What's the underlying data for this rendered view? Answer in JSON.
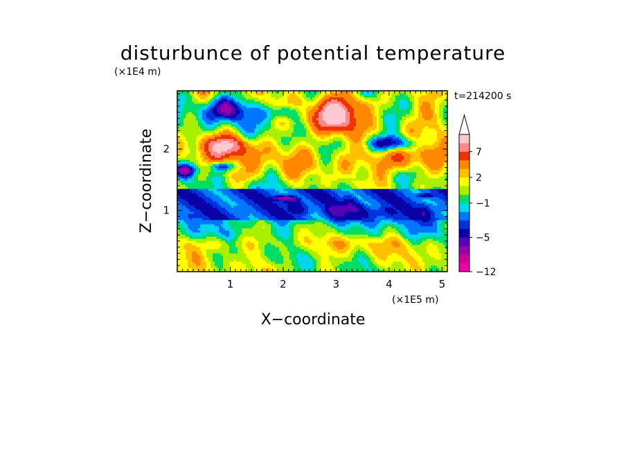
{
  "chart_data": {
    "type": "heatmap",
    "title": "disturbunce of potential temperature",
    "xlabel": "X−coordinate",
    "ylabel": "Z−coordinate",
    "x_unit": "(×1E5 m)",
    "y_unit": "(×1E4 m)",
    "time_label": "t=214200 s",
    "x_ticks": [
      "1",
      "2",
      "3",
      "4",
      "5"
    ],
    "x_tick_values": [
      1,
      2,
      3,
      4,
      5
    ],
    "y_ticks": [
      "1",
      "2"
    ],
    "y_tick_values": [
      1,
      2
    ],
    "xlim": [
      0,
      5.1
    ],
    "ylim": [
      0,
      2.95
    ],
    "colorbar": {
      "bounds": [
        -12,
        -10,
        -8,
        -6,
        -5,
        -4,
        -3,
        -2,
        -1,
        0,
        1,
        2,
        3,
        5,
        7,
        9,
        11
      ],
      "labels": [
        "7",
        "2",
        "−1",
        "−5",
        "−12"
      ],
      "label_values": [
        7,
        2,
        -1,
        -5,
        -12
      ],
      "colors": [
        "#ee00aa",
        "#cc0099",
        "#9a00a6",
        "#5a00b8",
        "#0a00a6",
        "#0033dd",
        "#0077ff",
        "#00d7ee",
        "#00dd66",
        "#aaee00",
        "#ffff00",
        "#ffc000",
        "#ff8800",
        "#ee3300",
        "#ff8888",
        "#ffc8d0"
      ],
      "extend": "max",
      "position": "right"
    },
    "field_layers": [
      {
        "z": 0.18,
        "amp": -0.3,
        "base": 0.6
      },
      {
        "z": 0.45,
        "amp": 1.6,
        "base": 1.1
      },
      {
        "z": 0.68,
        "amp": -0.4,
        "base": -0.6
      },
      {
        "z": 1.0,
        "amp": -4.2,
        "base": -3.6
      },
      {
        "z": 1.45,
        "amp": -0.2,
        "base": 0.3
      },
      {
        "z": 1.85,
        "amp": 2.6,
        "base": 2.2
      },
      {
        "z": 2.3,
        "amp": -1.3,
        "base": 0.3
      },
      {
        "z": 2.75,
        "amp": 1.2,
        "base": 0.6
      }
    ],
    "features": [
      {
        "x": 2.95,
        "z": 2.55,
        "value": 10.5,
        "rx": 0.45,
        "rz": 0.3
      },
      {
        "x": 0.95,
        "z": 2.05,
        "value": 8.5,
        "rx": 0.45,
        "rz": 0.18
      },
      {
        "x": 1.25,
        "z": 1.6,
        "value": 2.5,
        "rx": 0.35,
        "rz": 0.15
      },
      {
        "x": 0.95,
        "z": 2.65,
        "value": -5.5,
        "rx": 0.5,
        "rz": 0.2
      },
      {
        "x": 0.85,
        "z": 1.72,
        "value": -4.5,
        "rx": 0.2,
        "rz": 0.08
      },
      {
        "x": 2.0,
        "z": 2.6,
        "value": -3.5,
        "rx": 0.3,
        "rz": 0.12
      },
      {
        "x": 4.05,
        "z": 2.1,
        "value": -5.0,
        "rx": 0.45,
        "rz": 0.12
      },
      {
        "x": 4.2,
        "z": 1.85,
        "value": 6.0,
        "rx": 0.45,
        "rz": 0.18
      },
      {
        "x": 4.9,
        "z": 2.55,
        "value": 3.5,
        "rx": 0.3,
        "rz": 0.35
      },
      {
        "x": 3.6,
        "z": 2.75,
        "value": 3.0,
        "rx": 0.3,
        "rz": 0.15
      },
      {
        "x": 0.15,
        "z": 1.65,
        "value": -5.0,
        "rx": 0.2,
        "rz": 0.1
      },
      {
        "x": 2.0,
        "z": 1.2,
        "value": -6.0,
        "rx": 0.25,
        "rz": 0.05
      },
      {
        "x": 4.7,
        "z": 1.25,
        "value": -6.5,
        "rx": 0.2,
        "rz": 0.05
      },
      {
        "x": 0.8,
        "z": 0.45,
        "value": 2.5,
        "rx": 0.35,
        "rz": 0.1
      },
      {
        "x": 3.3,
        "z": 0.45,
        "value": 2.0,
        "rx": 0.35,
        "rz": 0.1
      }
    ]
  }
}
